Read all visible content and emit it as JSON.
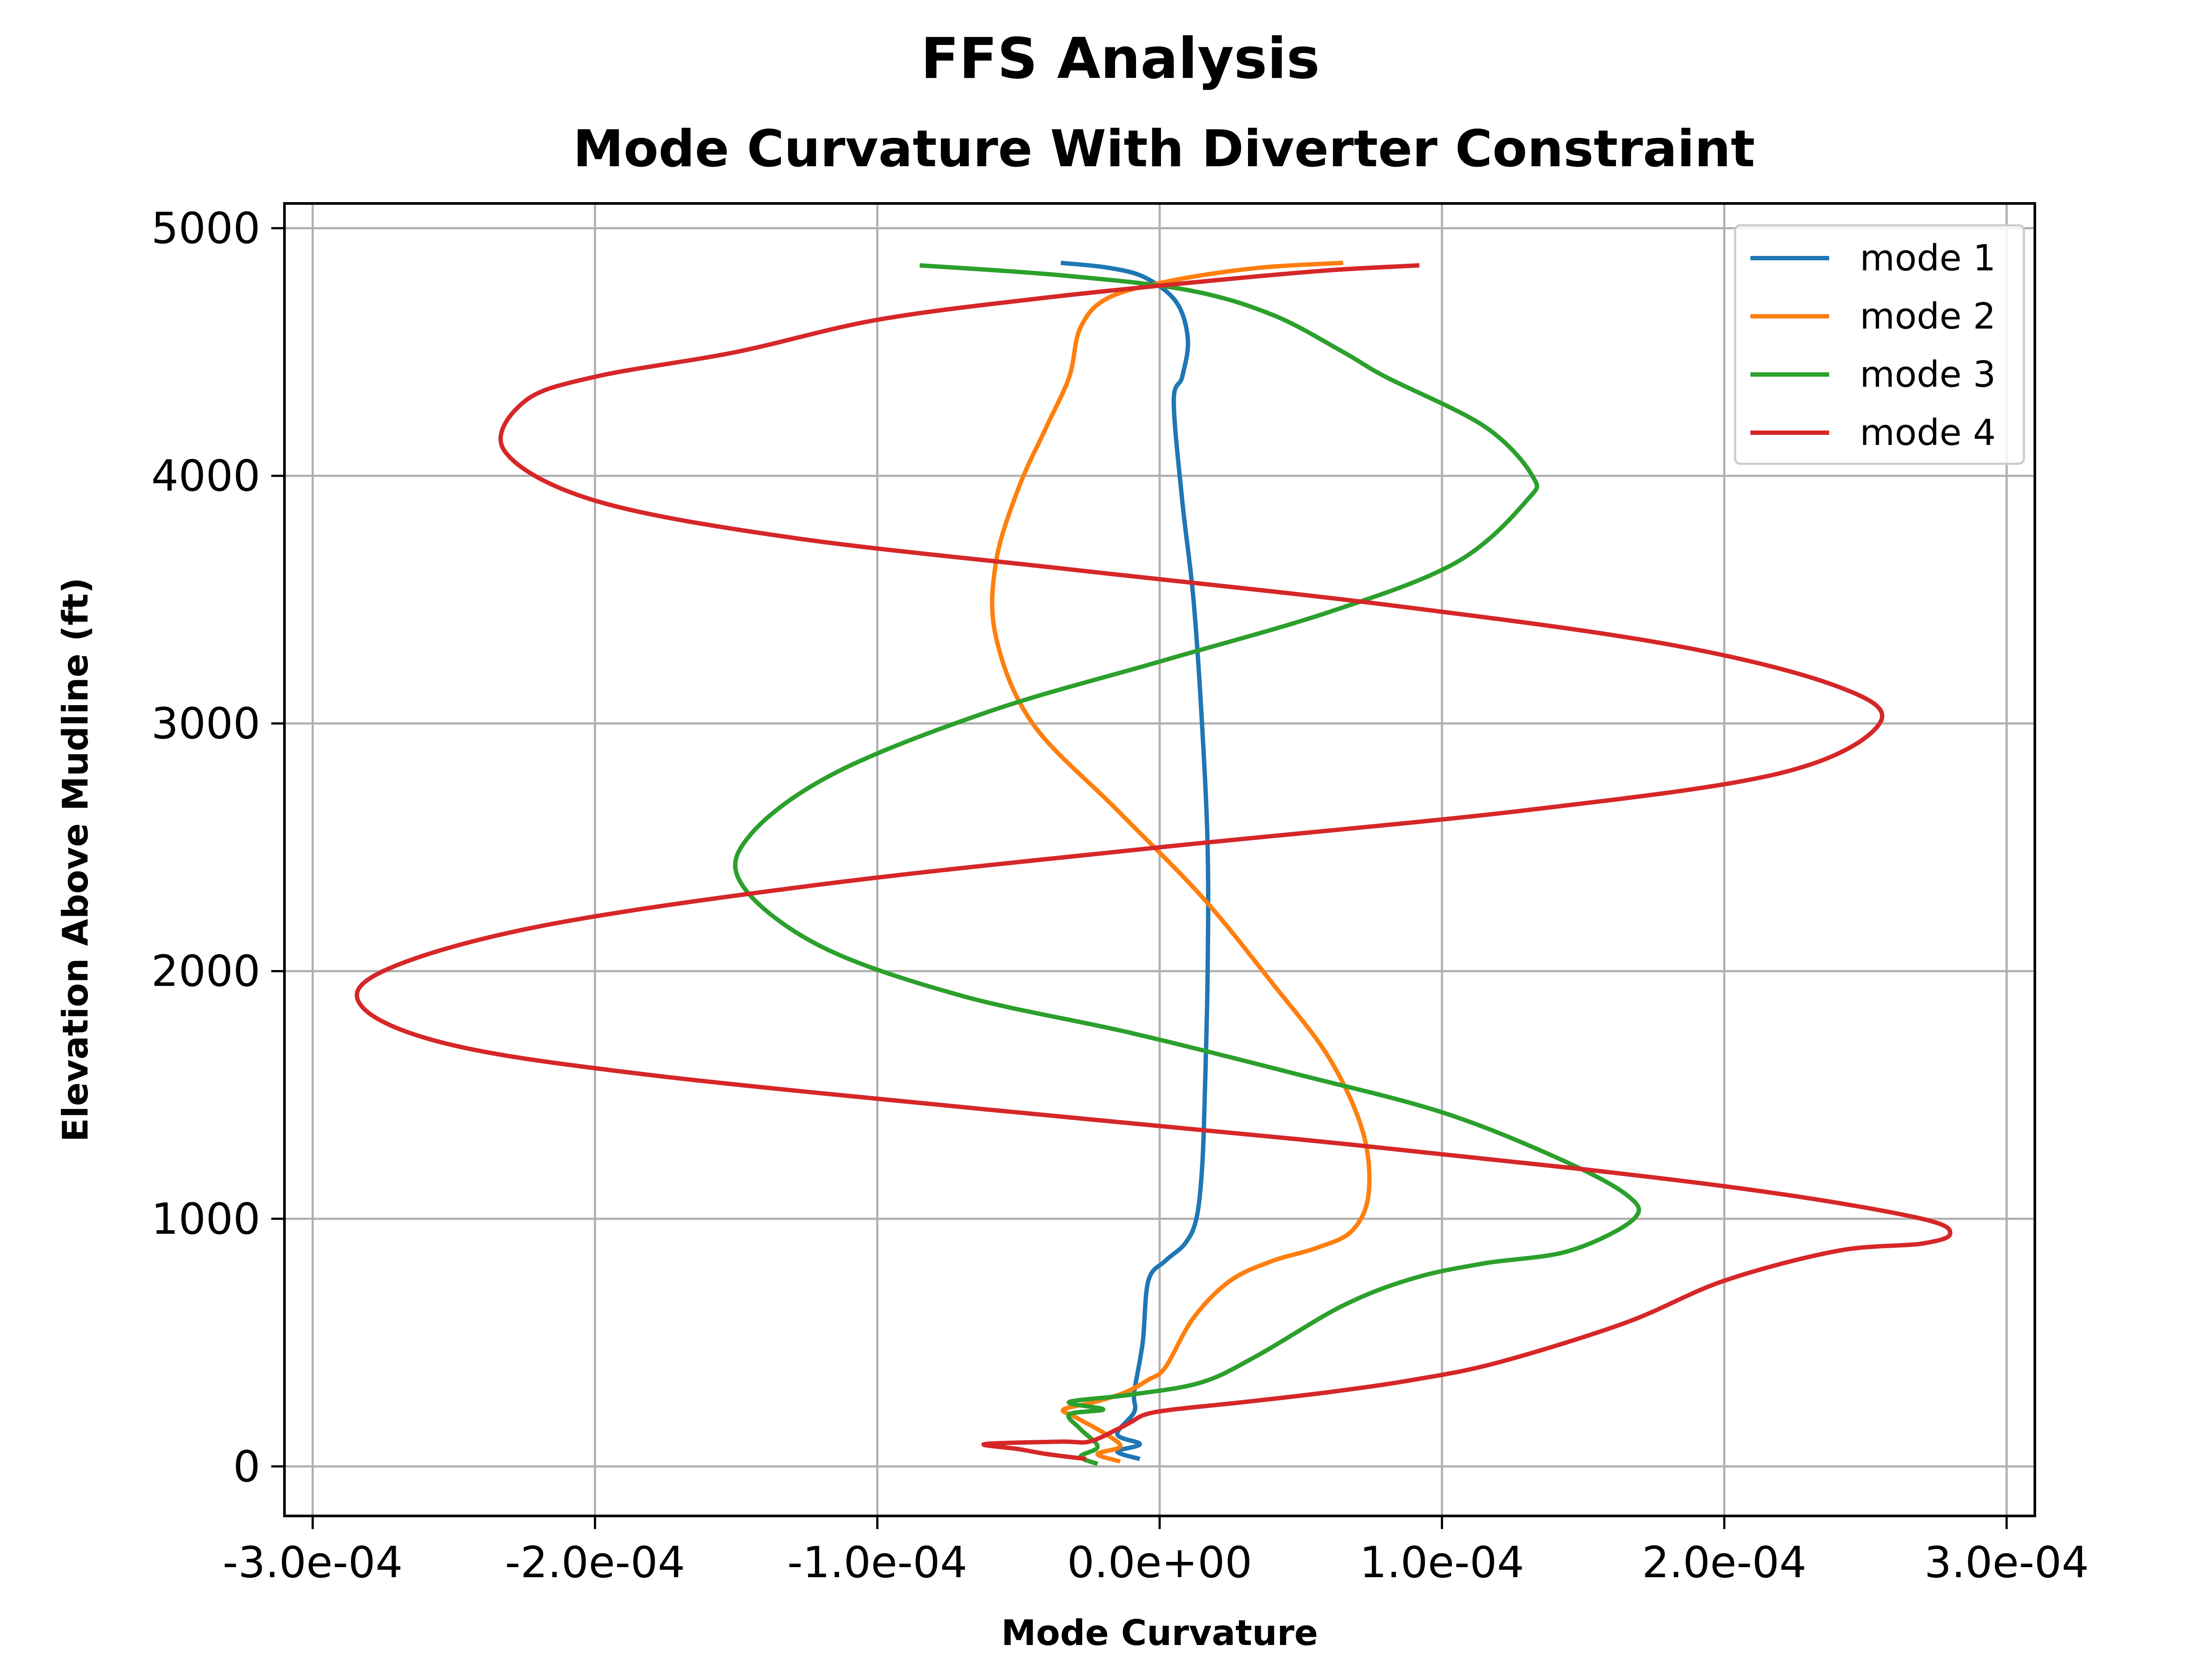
{
  "suptitle": "FFS Analysis",
  "chart_data": {
    "type": "line",
    "title": "Mode Curvature With Diverter Constraint",
    "xlabel": "Mode Curvature",
    "ylabel": "Elevation Above Mudline (ft)",
    "xlim": [
      -0.00031,
      0.00031
    ],
    "ylim": [
      -200,
      5100
    ],
    "xticks": [
      -0.0003,
      -0.0002,
      -0.0001,
      0,
      0.0001,
      0.0002,
      0.0003
    ],
    "xtick_labels": [
      "-3.0e-04",
      "-2.0e-04",
      "-1.0e-04",
      "0.0e+00",
      "1.0e-04",
      "2.0e-04",
      "3.0e-04"
    ],
    "yticks": [
      0,
      1000,
      2000,
      3000,
      4000,
      5000
    ],
    "ytick_labels": [
      "0",
      "1000",
      "2000",
      "3000",
      "4000",
      "5000"
    ],
    "grid": true,
    "legend_position": "top-right",
    "series": [
      {
        "name": "mode 1",
        "color": "#1f77b4",
        "points": [
          [
            -7e-06,
            30
          ],
          [
            -1.5e-05,
            60
          ],
          [
            -7e-06,
            90
          ],
          [
            -1.5e-05,
            130
          ],
          [
            -9e-06,
            220
          ],
          [
            -9e-06,
            300
          ],
          [
            -6e-06,
            500
          ],
          [
            -4e-06,
            750
          ],
          [
            2e-06,
            830
          ],
          [
            9e-06,
            900
          ],
          [
            1.3e-05,
            1000
          ],
          [
            1.5e-05,
            1200
          ],
          [
            1.6e-05,
            1500
          ],
          [
            1.7e-05,
            2000
          ],
          [
            1.7e-05,
            2500
          ],
          [
            1.5e-05,
            3000
          ],
          [
            1.2e-05,
            3500
          ],
          [
            8e-06,
            3900
          ],
          [
            5e-06,
            4300
          ],
          [
            8e-06,
            4400
          ],
          [
            1e-05,
            4550
          ],
          [
            6e-06,
            4700
          ],
          [
            -5e-06,
            4800
          ],
          [
            -1.8e-05,
            4840
          ],
          [
            -3.5e-05,
            4860
          ]
        ]
      },
      {
        "name": "mode 2",
        "color": "#ff7f0e",
        "points": [
          [
            -1.4e-05,
            20
          ],
          [
            -2.2e-05,
            50
          ],
          [
            -1.4e-05,
            80
          ],
          [
            -1.9e-05,
            130
          ],
          [
            -3e-05,
            200
          ],
          [
            -3.4e-05,
            230
          ],
          [
            -2.3e-05,
            260
          ],
          [
            -1.2e-05,
            300
          ],
          [
            -4e-06,
            350
          ],
          [
            2e-06,
            400
          ],
          [
            1.2e-05,
            600
          ],
          [
            2.5e-05,
            750
          ],
          [
            4e-05,
            830
          ],
          [
            5.5e-05,
            880
          ],
          [
            6.8e-05,
            950
          ],
          [
            7.4e-05,
            1100
          ],
          [
            7.2e-05,
            1350
          ],
          [
            6e-05,
            1650
          ],
          [
            4e-05,
            1950
          ],
          [
            1.5e-05,
            2300
          ],
          [
            -1.5e-05,
            2650
          ],
          [
            -4.5e-05,
            3000
          ],
          [
            -5.8e-05,
            3350
          ],
          [
            -5.8e-05,
            3650
          ],
          [
            -5e-05,
            3950
          ],
          [
            -4e-05,
            4200
          ],
          [
            -3.2e-05,
            4400
          ],
          [
            -2.8e-05,
            4600
          ],
          [
            -1.8e-05,
            4720
          ],
          [
            5e-06,
            4790
          ],
          [
            3.5e-05,
            4840
          ],
          [
            6.5e-05,
            4860
          ]
        ]
      },
      {
        "name": "mode 3",
        "color": "#2ca02c",
        "points": [
          [
            -2.2e-05,
            10
          ],
          [
            -2.8e-05,
            40
          ],
          [
            -2.2e-05,
            80
          ],
          [
            -2.8e-05,
            150
          ],
          [
            -3.2e-05,
            210
          ],
          [
            -2e-05,
            230
          ],
          [
            -3.2e-05,
            260
          ],
          [
            -1e-05,
            290
          ],
          [
            1.5e-05,
            340
          ],
          [
            3.5e-05,
            450
          ],
          [
            6.5e-05,
            650
          ],
          [
            9e-05,
            760
          ],
          [
            0.000115,
            820
          ],
          [
            0.000145,
            870
          ],
          [
            0.000168,
            1000
          ],
          [
            0.000165,
            1100
          ],
          [
            0.00014,
            1250
          ],
          [
            0.0001,
            1430
          ],
          [
            5e-05,
            1580
          ],
          [
            -1e-05,
            1750
          ],
          [
            -7e-05,
            1900
          ],
          [
            -0.00012,
            2100
          ],
          [
            -0.000148,
            2350
          ],
          [
            -0.000145,
            2550
          ],
          [
            -0.000115,
            2800
          ],
          [
            -6e-05,
            3050
          ],
          [
            0,
            3250
          ],
          [
            6e-05,
            3450
          ],
          [
            0.000105,
            3650
          ],
          [
            0.00013,
            3900
          ],
          [
            0.000132,
            4000
          ],
          [
            0.000115,
            4200
          ],
          [
            8e-05,
            4400
          ],
          [
            6.5e-05,
            4500
          ],
          [
            4e-05,
            4650
          ],
          [
            1e-05,
            4750
          ],
          [
            -3.5e-05,
            4810
          ],
          [
            -8.5e-05,
            4850
          ]
        ]
      },
      {
        "name": "mode 4",
        "color": "#d62728",
        "points": [
          [
            -2.6e-05,
            30
          ],
          [
            -4e-05,
            50
          ],
          [
            -5e-05,
            70
          ],
          [
            -6.2e-05,
            90
          ],
          [
            -3.5e-05,
            100
          ],
          [
            -2.5e-05,
            100
          ],
          [
            -1.5e-05,
            150
          ],
          [
            -1e-05,
            180
          ],
          [
            -5e-06,
            210
          ],
          [
            5e-06,
            230
          ],
          [
            3e-05,
            260
          ],
          [
            6e-05,
            300
          ],
          [
            9e-05,
            350
          ],
          [
            0.00012,
            420
          ],
          [
            0.000165,
            580
          ],
          [
            0.0002,
            750
          ],
          [
            0.00024,
            870
          ],
          [
            0.00027,
            900
          ],
          [
            0.00028,
            940
          ],
          [
            0.00027,
            1000
          ],
          [
            0.00022,
            1100
          ],
          [
            0.00015,
            1200
          ],
          [
            5e-05,
            1320
          ],
          [
            -6e-05,
            1440
          ],
          [
            -0.00018,
            1580
          ],
          [
            -0.00025,
            1700
          ],
          [
            -0.000282,
            1850
          ],
          [
            -0.000275,
            2000
          ],
          [
            -0.00022,
            2180
          ],
          [
            -0.00012,
            2350
          ],
          [
            0,
            2500
          ],
          [
            0.00013,
            2650
          ],
          [
            0.00022,
            2800
          ],
          [
            0.000255,
            3000
          ],
          [
            0.00024,
            3150
          ],
          [
            0.00018,
            3320
          ],
          [
            8e-05,
            3480
          ],
          [
            -3e-05,
            3620
          ],
          [
            -0.00013,
            3750
          ],
          [
            -0.0002,
            3900
          ],
          [
            -0.000232,
            4100
          ],
          [
            -0.000225,
            4300
          ],
          [
            -0.0002,
            4400
          ],
          [
            -0.00015,
            4500
          ],
          [
            -0.0001,
            4630
          ],
          [
            -4e-05,
            4720
          ],
          [
            2e-05,
            4790
          ],
          [
            6e-05,
            4830
          ],
          [
            9.2e-05,
            4850
          ]
        ]
      }
    ]
  }
}
